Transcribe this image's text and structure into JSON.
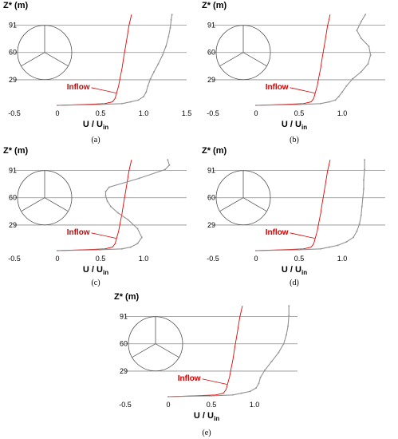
{
  "chart_data": [
    {
      "id": "a",
      "type": "line",
      "caption": "(a)",
      "ylabel": "Z* (m)",
      "xlabel_main": "U / U",
      "xlabel_sub": "in",
      "yticks": [
        "91",
        "60",
        "29"
      ],
      "xticks": [
        "-0.5",
        "0",
        "0.5",
        "1.0",
        "1.5"
      ],
      "xlim": [
        -0.5,
        1.5
      ],
      "ylim": [
        0,
        105
      ],
      "annotation": "Inflow",
      "series": [
        {
          "color": "#e60000",
          "x": [
            0.0,
            0.3,
            0.55,
            0.64,
            0.67,
            0.69,
            0.71,
            0.73,
            0.75,
            0.77,
            0.79,
            0.81,
            0.83,
            0.86
          ],
          "y": [
            0,
            1,
            2,
            4,
            8,
            15,
            22,
            32,
            42,
            55,
            66,
            78,
            90,
            103
          ]
        },
        {
          "color": "#909090",
          "x": [
            0.0,
            0.5,
            0.75,
            0.85,
            0.94,
            1.0,
            1.03,
            1.05,
            1.08,
            1.12,
            1.17,
            1.22,
            1.26,
            1.29,
            1.31,
            1.32,
            1.33
          ],
          "y": [
            0,
            1,
            2,
            4,
            6,
            10,
            15,
            22,
            30,
            38,
            47,
            57,
            67,
            78,
            88,
            97,
            103
          ]
        }
      ]
    },
    {
      "id": "b",
      "type": "line",
      "caption": "(b)",
      "ylabel": "Z* (m)",
      "xlabel_main": "U / U",
      "xlabel_sub": "in",
      "yticks": [
        "91",
        "60",
        "29"
      ],
      "xticks": [
        "-0.5",
        "0",
        "0.5",
        "1.0"
      ],
      "xlim": [
        -0.5,
        1.5
      ],
      "ylim": [
        0,
        105
      ],
      "annotation": "Inflow",
      "series": [
        {
          "color": "#e60000",
          "x": [
            0.0,
            0.3,
            0.55,
            0.64,
            0.67,
            0.69,
            0.71,
            0.73,
            0.75,
            0.77,
            0.79,
            0.81,
            0.83,
            0.86
          ],
          "y": [
            0,
            1,
            2,
            4,
            8,
            15,
            22,
            32,
            42,
            55,
            66,
            78,
            90,
            103
          ]
        },
        {
          "color": "#909090",
          "x": [
            0.0,
            0.5,
            0.75,
            0.85,
            0.92,
            0.96,
            1.0,
            1.05,
            1.12,
            1.22,
            1.3,
            1.33,
            1.31,
            1.22,
            1.17,
            1.22,
            1.27
          ],
          "y": [
            0,
            1,
            2,
            4,
            6,
            10,
            15,
            22,
            30,
            38,
            47,
            57,
            67,
            76,
            85,
            95,
            103
          ]
        }
      ]
    },
    {
      "id": "c",
      "type": "line",
      "caption": "(c)",
      "ylabel": "Z* (m)",
      "xlabel_main": "U / U",
      "xlabel_sub": "in",
      "yticks": [
        "91",
        "60",
        "29"
      ],
      "xticks": [
        "-0.5",
        "0",
        "0.5",
        "1.0"
      ],
      "xlim": [
        -0.5,
        1.5
      ],
      "ylim": [
        0,
        105
      ],
      "annotation": "Inflow",
      "series": [
        {
          "color": "#e60000",
          "x": [
            0.0,
            0.3,
            0.55,
            0.64,
            0.67,
            0.69,
            0.71,
            0.73,
            0.75,
            0.77,
            0.79,
            0.81,
            0.83,
            0.86
          ],
          "y": [
            0,
            1,
            2,
            4,
            8,
            15,
            22,
            32,
            42,
            55,
            66,
            78,
            90,
            103
          ]
        },
        {
          "color": "#909090",
          "x": [
            0.0,
            0.5,
            0.75,
            0.85,
            0.93,
            0.98,
            0.93,
            0.82,
            0.7,
            0.62,
            0.58,
            0.56,
            0.56,
            0.6,
            0.95,
            1.25,
            1.3,
            1.28
          ],
          "y": [
            0,
            1,
            2,
            4,
            8,
            15,
            25,
            35,
            43,
            50,
            56,
            62,
            67,
            72,
            82,
            92,
            97,
            103
          ]
        }
      ]
    },
    {
      "id": "d",
      "type": "line",
      "caption": "(d)",
      "ylabel": "Z* (m)",
      "xlabel_main": "U / U",
      "xlabel_sub": "in",
      "yticks": [
        "91",
        "60",
        "29"
      ],
      "xticks": [
        "-0.5",
        "0",
        "0.5",
        "1.0"
      ],
      "xlim": [
        -0.5,
        1.5
      ],
      "ylim": [
        0,
        105
      ],
      "annotation": "Inflow",
      "series": [
        {
          "color": "#e60000",
          "x": [
            0.0,
            0.3,
            0.55,
            0.64,
            0.67,
            0.69,
            0.71,
            0.73,
            0.75,
            0.77,
            0.79,
            0.81,
            0.83,
            0.86
          ],
          "y": [
            0,
            1,
            2,
            4,
            8,
            15,
            22,
            32,
            42,
            55,
            66,
            78,
            90,
            103
          ]
        },
        {
          "color": "#909090",
          "x": [
            0.0,
            0.5,
            0.75,
            0.85,
            0.95,
            1.05,
            1.13,
            1.17,
            1.2,
            1.22,
            1.23,
            1.24,
            1.25,
            1.25,
            1.26,
            1.26
          ],
          "y": [
            0,
            1,
            2,
            4,
            6,
            10,
            15,
            22,
            30,
            40,
            50,
            60,
            70,
            80,
            92,
            103
          ]
        }
      ]
    },
    {
      "id": "e",
      "type": "line",
      "caption": "(e)",
      "ylabel": "Z* (m)",
      "xlabel_main": "U / U",
      "xlabel_sub": "in",
      "yticks": [
        "91",
        "60",
        "29"
      ],
      "xticks": [
        "-0.5",
        "0",
        "0.5",
        "1.0"
      ],
      "xlim": [
        -0.5,
        1.5
      ],
      "ylim": [
        0,
        105
      ],
      "annotation": "Inflow",
      "series": [
        {
          "color": "#e60000",
          "x": [
            0.0,
            0.3,
            0.55,
            0.64,
            0.67,
            0.69,
            0.71,
            0.73,
            0.75,
            0.77,
            0.79,
            0.81,
            0.83,
            0.86
          ],
          "y": [
            0,
            1,
            2,
            4,
            8,
            15,
            22,
            32,
            42,
            55,
            66,
            78,
            90,
            103
          ]
        },
        {
          "color": "#909090",
          "x": [
            0.0,
            0.5,
            0.75,
            0.85,
            0.95,
            1.02,
            1.05,
            1.07,
            1.12,
            1.2,
            1.28,
            1.34,
            1.37,
            1.39,
            1.4,
            1.4
          ],
          "y": [
            0,
            1,
            2,
            4,
            6,
            10,
            15,
            22,
            30,
            40,
            50,
            60,
            70,
            80,
            92,
            103
          ]
        }
      ]
    }
  ]
}
